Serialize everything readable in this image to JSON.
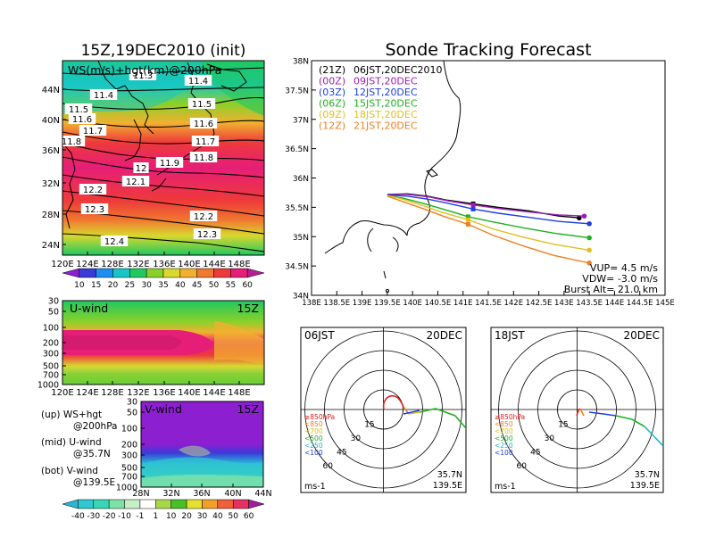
{
  "left": {
    "title": "15Z,19DEC2010 (init)",
    "map": {
      "label": "WS(m/s)+hgt(km)@200hPa",
      "lon_ticks": [
        "120E",
        "124E",
        "128E",
        "132E",
        "136E",
        "140E",
        "144E",
        "148E"
      ],
      "lat_ticks": [
        "44N",
        "40N",
        "36N",
        "32N",
        "28N",
        "24N"
      ],
      "contour_labels": [
        "11.3",
        "11.4",
        "11.4",
        "11.5",
        "11.5",
        "11.6",
        "11.6",
        "11.7",
        "11.7",
        "11.8",
        "11.8",
        "11.9",
        "12",
        "12.1",
        "12.2",
        "12.2",
        "12.3",
        "12.3",
        "12.4"
      ],
      "colorbar_ticks": [
        "10",
        "15",
        "20",
        "25",
        "30",
        "35",
        "40",
        "45",
        "50",
        "55",
        "60"
      ],
      "colors": [
        "#8c1fd0",
        "#3a3ad8",
        "#1e8ff0",
        "#18c6c6",
        "#20c860",
        "#8ad02a",
        "#d8d82e",
        "#f2b030",
        "#f07830",
        "#ee3a3a",
        "#e61e78",
        "#b41e96"
      ]
    },
    "u_panel": {
      "label": "U-wind",
      "time": "15Z",
      "p_ticks": [
        "30",
        "50",
        "100",
        "200",
        "300",
        "500",
        "700",
        "1000"
      ],
      "lon_ticks": [
        "120E",
        "124E",
        "128E",
        "132E",
        "136E",
        "140E",
        "144E",
        "148E"
      ]
    },
    "v_panel": {
      "label": "V-wind",
      "time": "15Z",
      "p_ticks": [
        "30",
        "50",
        "100",
        "200",
        "300",
        "500",
        "700",
        "1000"
      ],
      "lat_ticks": [
        "28N",
        "32N",
        "36N",
        "40N",
        "44N"
      ],
      "colorbar_ticks": [
        "-40",
        "-30",
        "-20",
        "-10",
        "-1",
        "1",
        "10",
        "20",
        "30",
        "40",
        "50",
        "60"
      ],
      "colors": [
        "#2ab4d8",
        "#30c8d0",
        "#38d6b4",
        "#7ee2a8",
        "#c8eec8",
        "#ffffff",
        "#a8d848",
        "#48c02a",
        "#e6e030",
        "#f0a028",
        "#ee6038",
        "#e63060",
        "#a01e9a"
      ]
    },
    "notes": {
      "up": "(up) WS+hgt",
      "up2": "@200hPa",
      "mid": "(mid) U-wind",
      "mid2": "@35.7N",
      "bot": "(bot) V-wind",
      "bot2": "@139.5E"
    }
  },
  "right": {
    "title": "Sonde Tracking Forecast",
    "map": {
      "lat_ticks": [
        "38N",
        "37.5N",
        "37N",
        "36.5N",
        "36N",
        "35.5N",
        "35N",
        "34.5N",
        "34N"
      ],
      "lon_ticks": [
        "138E",
        "138.5E",
        "139E",
        "139.5E",
        "140E",
        "140.5E",
        "141E",
        "141.5E",
        "142E",
        "142.5E",
        "143E",
        "143.5E",
        "144E",
        "144.5E",
        "145E"
      ],
      "legend": [
        {
          "z": "(21Z)",
          "jst": "06JST,20DEC2010",
          "color": "#000000"
        },
        {
          "z": "(00Z)",
          "jst": "09JST,20DEC",
          "color": "#9b1fb6"
        },
        {
          "z": "(03Z)",
          "jst": "12JST,20DEC",
          "color": "#2040e0"
        },
        {
          "z": "(06Z)",
          "jst": "15JST,20DEC",
          "color": "#20b020"
        },
        {
          "z": "(09Z)",
          "jst": "18JST,20DEC",
          "color": "#e0c020"
        },
        {
          "z": "(12Z)",
          "jst": "21JST,20DEC",
          "color": "#f08020"
        }
      ],
      "params": [
        "VUP= 4.5 m/s",
        "VDW= -3.0 m/s",
        "Burst Alt= 21.0 km"
      ]
    },
    "hodographs": [
      {
        "left": "06JST",
        "right": "20DEC",
        "unit": "ms-1",
        "lat": "35.7N",
        "lon": "139.5E",
        "rings": [
          "15",
          "30",
          "45",
          "60"
        ]
      },
      {
        "left": "18JST",
        "right": "20DEC",
        "unit": "ms-1",
        "lat": "35.7N",
        "lon": "139.5E",
        "rings": [
          "15",
          "30",
          "45",
          "60"
        ]
      }
    ],
    "hodo_legend": [
      "≥850hPa",
      "<850",
      "<700",
      "<500",
      "<250",
      "<100"
    ],
    "hodo_legend_colors": [
      "#e02020",
      "#f08020",
      "#d8c020",
      "#20b020",
      "#20b0d0",
      "#2040e0"
    ]
  },
  "chart_data": [
    {
      "type": "heatmap",
      "title": "15Z,19DEC2010 (init)",
      "subtitle": "WS(m/s)+hgt(km)@200hPa",
      "xlim": [
        120,
        150
      ],
      "ylim": [
        22,
        48
      ],
      "contours_km": [
        11.3,
        11.4,
        11.5,
        11.6,
        11.7,
        11.8,
        11.9,
        12.0,
        12.1,
        12.2,
        12.3,
        12.4
      ],
      "colorbar": [
        10,
        15,
        20,
        25,
        30,
        35,
        40,
        45,
        50,
        55,
        60
      ]
    },
    {
      "type": "heatmap",
      "title": "U-wind",
      "xlim": [
        120,
        150
      ],
      "ylim_hPa": [
        1000,
        30
      ]
    },
    {
      "type": "heatmap",
      "title": "V-wind",
      "xlim": [
        28,
        44
      ],
      "ylim_hPa": [
        1000,
        30
      ],
      "colorbar": [
        -40,
        -30,
        -20,
        -10,
        -1,
        1,
        10,
        20,
        30,
        40,
        50,
        60
      ]
    },
    {
      "type": "line",
      "title": "Sonde Tracking Forecast",
      "xlim": [
        138,
        145
      ],
      "ylim": [
        34,
        38
      ],
      "series": [
        {
          "name": "06JST,20DEC2010",
          "color": "#000000",
          "x": [
            139.5,
            139.9,
            140.3,
            140.7,
            141.2,
            141.7,
            142.3,
            142.9,
            143.3
          ],
          "y": [
            35.72,
            35.73,
            35.69,
            35.62,
            35.56,
            35.5,
            35.44,
            35.35,
            35.32
          ]
        },
        {
          "name": "09JST,20DEC",
          "color": "#9b1fb6",
          "x": [
            139.5,
            139.9,
            140.3,
            140.7,
            141.2,
            141.7,
            142.3,
            142.9,
            143.4
          ],
          "y": [
            35.72,
            35.72,
            35.68,
            35.61,
            35.54,
            35.48,
            35.42,
            35.37,
            35.35
          ]
        },
        {
          "name": "12JST,20DEC",
          "color": "#2040e0",
          "x": [
            139.5,
            139.9,
            140.3,
            140.7,
            141.2,
            141.7,
            142.3,
            142.9,
            143.5
          ],
          "y": [
            35.71,
            35.69,
            35.64,
            35.57,
            35.47,
            35.4,
            35.33,
            35.26,
            35.22
          ]
        },
        {
          "name": "15JST,20DEC",
          "color": "#20b020",
          "x": [
            139.5,
            139.8,
            140.2,
            140.6,
            141.1,
            141.6,
            142.2,
            142.8,
            143.5
          ],
          "y": [
            35.7,
            35.66,
            35.57,
            35.47,
            35.34,
            35.25,
            35.15,
            35.06,
            34.98
          ]
        },
        {
          "name": "18JST,20DEC",
          "color": "#e0c020",
          "x": [
            139.5,
            139.8,
            140.2,
            140.6,
            141.1,
            141.6,
            142.2,
            142.8,
            143.5
          ],
          "y": [
            35.7,
            35.64,
            35.53,
            35.41,
            35.29,
            35.13,
            34.99,
            34.87,
            34.77
          ]
        },
        {
          "name": "21JST,20DEC",
          "color": "#f08020",
          "x": [
            139.5,
            139.8,
            140.2,
            140.6,
            141.1,
            141.6,
            142.2,
            142.8,
            143.5
          ],
          "y": [
            35.69,
            35.6,
            35.48,
            35.35,
            35.21,
            35.02,
            34.84,
            34.68,
            34.55
          ]
        }
      ]
    }
  ]
}
